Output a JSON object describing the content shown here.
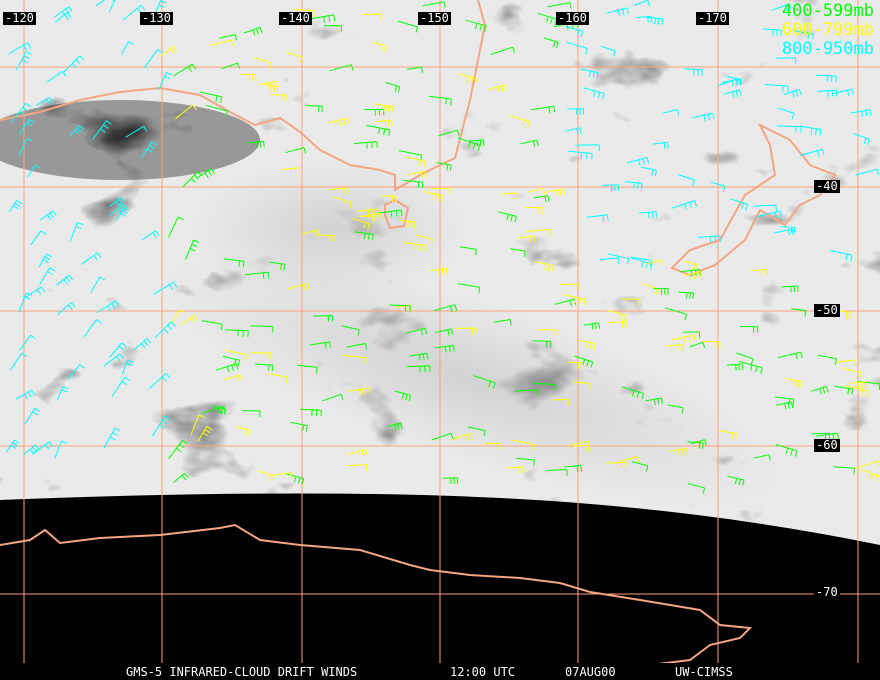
{
  "map": {
    "longitude_labels": [
      "-120",
      "-130",
      "-140",
      "-150",
      "-160",
      "-170"
    ],
    "latitude_labels": [
      "-40",
      "-50",
      "-60",
      "-70"
    ],
    "grid_color": "#ffa07a",
    "coastline_color": "#f4a582"
  },
  "legend": [
    {
      "label": "400-599mb",
      "color": "#00ff00"
    },
    {
      "label": "600-799mb",
      "color": "#ffff00"
    },
    {
      "label": "800-950mb",
      "color": "#00ffff"
    }
  ],
  "footer": {
    "product": "GMS-5 INFRARED-CLOUD DRIFT WINDS",
    "time": "12:00 UTC",
    "date": "07AUG00",
    "source": "UW-CIMSS"
  }
}
